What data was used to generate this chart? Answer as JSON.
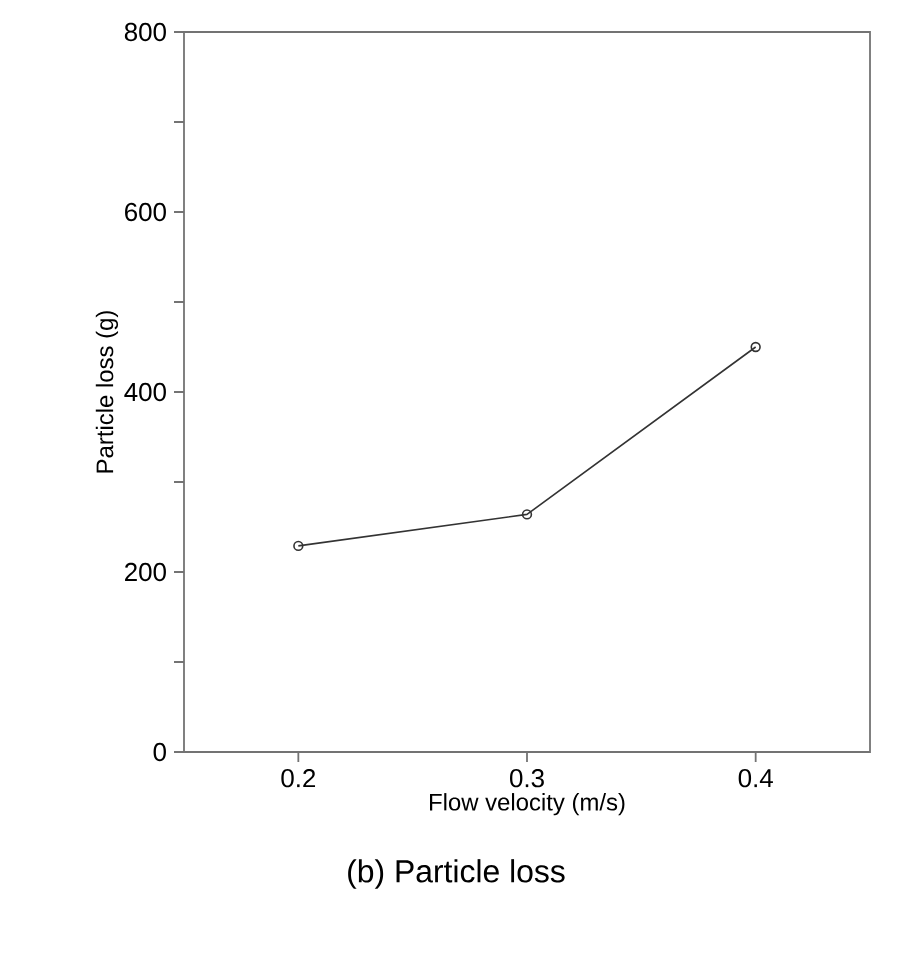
{
  "chart_data": {
    "type": "line",
    "xlabel": "Flow velocity (m/s)",
    "ylabel": "Particle loss (g)",
    "x": [
      0.2,
      0.3,
      0.4
    ],
    "series": [
      {
        "color": "#333333",
        "values": [
          229,
          264,
          450
        ]
      }
    ],
    "xlim": [
      0.15,
      0.45
    ],
    "xticks": [
      0.2,
      0.3,
      0.4
    ],
    "ylim": [
      0,
      800
    ],
    "yticks": [
      0,
      {
        "value": 100,
        "label": null
      },
      200,
      {
        "value": 300,
        "label": null
      },
      400,
      {
        "value": 500,
        "label": null
      },
      600,
      {
        "value": 700,
        "label": null
      },
      800
    ],
    "marker": "circle",
    "line_style": "solid",
    "grid": false,
    "annotations": [
      "(b) Particle loss"
    ]
  }
}
